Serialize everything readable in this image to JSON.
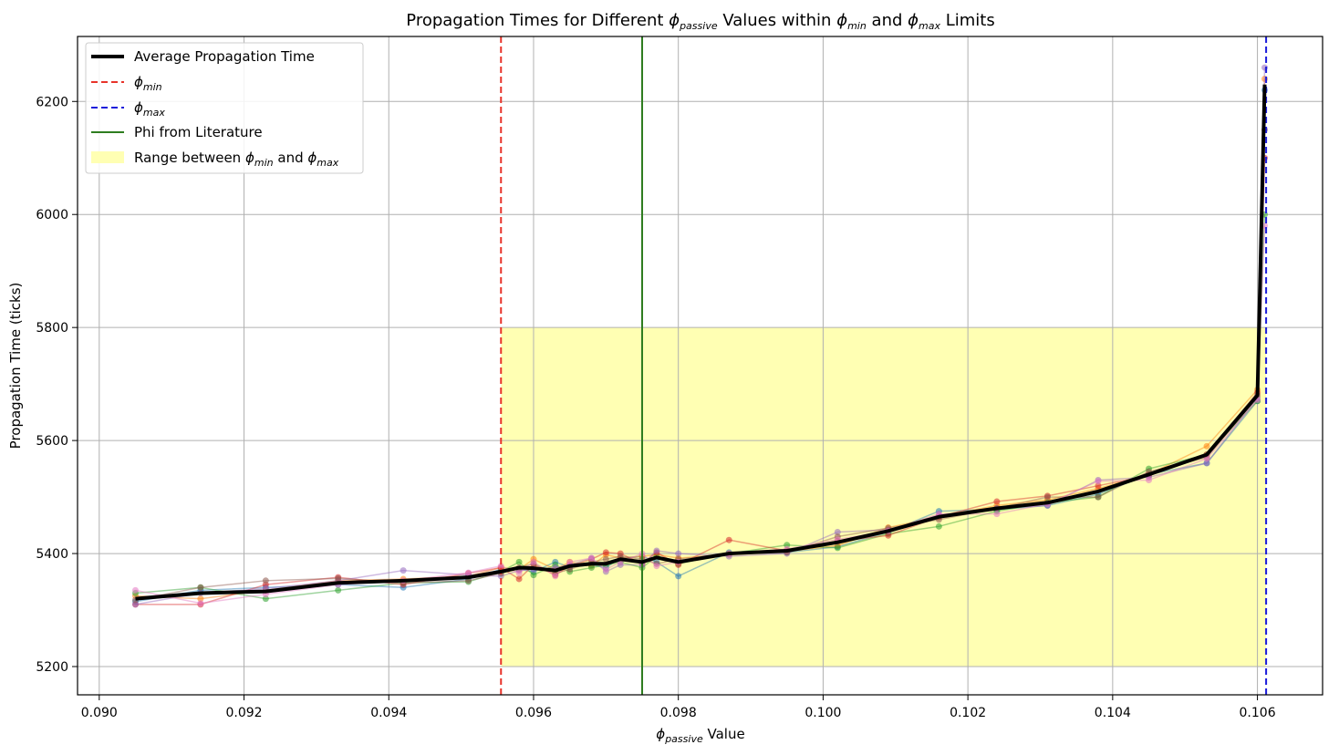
{
  "chart_data": {
    "type": "line",
    "title": {
      "prefix": "Propagation Times for Different ",
      "phi": "ϕ",
      "sub1": "passive",
      "mid1": " Values within ",
      "sub2": "min",
      "mid2": " and ",
      "sub3": "max",
      "suffix": " Limits"
    },
    "xlabel": {
      "phi": "ϕ",
      "sub": "passive",
      "suffix": " Value"
    },
    "ylabel": "Propagation Time (ticks)",
    "xlim": [
      0.0897,
      0.1069
    ],
    "ylim": [
      5150,
      6315
    ],
    "xticks": [
      "0.090",
      "0.092",
      "0.094",
      "0.096",
      "0.098",
      "0.100",
      "0.102",
      "0.104",
      "0.106"
    ],
    "xtick_values": [
      0.09,
      0.092,
      0.094,
      0.096,
      0.098,
      0.1,
      0.102,
      0.104,
      0.106
    ],
    "yticks": [
      "5200",
      "5400",
      "5600",
      "5800",
      "6000",
      "6200"
    ],
    "ytick_values": [
      5200,
      5400,
      5600,
      5800,
      6000,
      6200
    ],
    "grid": true,
    "legend_position": "top-left",
    "legend": [
      {
        "key": "avg",
        "label": "Average Propagation Time"
      },
      {
        "key": "phimin",
        "phi": "ϕ",
        "sub": "min"
      },
      {
        "key": "phimax",
        "phi": "ϕ",
        "sub": "max"
      },
      {
        "key": "lit",
        "label": "Phi from Literature"
      },
      {
        "key": "range",
        "prefix": "Range between ",
        "phi": "ϕ",
        "sub1": "min",
        "mid": " and ",
        "sub2": "max"
      }
    ],
    "phi_min": 0.09555,
    "phi_max": 0.10612,
    "phi_literature": 0.0975,
    "range_band": {
      "x": [
        0.09555,
        0.10612
      ],
      "y": [
        5200,
        5800
      ],
      "color": "#ffffb3"
    },
    "colors": {
      "average": "#000000",
      "phi_min": "#e8332a",
      "phi_max": "#1a1adb",
      "literature": "#2e7d1f",
      "grid": "#b0b0b0",
      "runs": [
        "#1f77b4",
        "#ff7f0e",
        "#2ca02c",
        "#d62728",
        "#9467bd",
        "#8c564b",
        "#e377c2",
        "#7f7f7f"
      ]
    },
    "x": [
      0.0905,
      0.0914,
      0.0923,
      0.0933,
      0.0942,
      0.0951,
      0.09555,
      0.0958,
      0.096,
      0.0963,
      0.0965,
      0.0968,
      0.097,
      0.0972,
      0.0975,
      0.0977,
      0.098,
      0.0987,
      0.0995,
      0.1002,
      0.1009,
      0.1016,
      0.1024,
      0.1031,
      0.1038,
      0.1045,
      0.1053,
      0.106,
      0.1061
    ],
    "series": [
      {
        "name": "Average Propagation Time",
        "values": [
          5320,
          5330,
          5333,
          5348,
          5352,
          5358,
          5368,
          5375,
          5374,
          5370,
          5378,
          5382,
          5382,
          5390,
          5385,
          5393,
          5385,
          5400,
          5405,
          5420,
          5440,
          5465,
          5480,
          5490,
          5510,
          5540,
          5575,
          5680,
          6230
        ]
      },
      {
        "values": [
          5315,
          5335,
          5340,
          5345,
          5340,
          5355,
          5372,
          5372,
          5368,
          5385,
          5376,
          5380,
          5375,
          5392,
          5395,
          5385,
          5360,
          5402,
          5402,
          5412,
          5438,
          5475,
          5478,
          5485,
          5505,
          5540,
          5560,
          5670,
          6220
        ]
      },
      {
        "values": [
          5325,
          5320,
          5335,
          5352,
          5355,
          5360,
          5375,
          5372,
          5390,
          5372,
          5385,
          5378,
          5398,
          5392,
          5395,
          5398,
          5392,
          5398,
          5404,
          5414,
          5446,
          5465,
          5485,
          5495,
          5515,
          5540,
          5590,
          5690,
          6240
        ]
      },
      {
        "values": [
          5330,
          5340,
          5320,
          5335,
          5348,
          5350,
          5368,
          5385,
          5362,
          5380,
          5368,
          5375,
          5380,
          5385,
          5375,
          5395,
          5382,
          5400,
          5415,
          5410,
          5435,
          5448,
          5475,
          5490,
          5500,
          5550,
          5575,
          5670,
          6000
        ]
      },
      {
        "values": [
          5310,
          5310,
          5345,
          5358,
          5345,
          5365,
          5375,
          5355,
          5380,
          5362,
          5378,
          5390,
          5402,
          5400,
          5382,
          5402,
          5380,
          5424,
          5405,
          5422,
          5432,
          5465,
          5492,
          5502,
          5520,
          5538,
          5575,
          5685,
          6100
        ]
      },
      {
        "values": [
          5310,
          5330,
          5338,
          5352,
          5370,
          5362,
          5360,
          5370,
          5372,
          5375,
          5380,
          5392,
          5368,
          5380,
          5380,
          5405,
          5400,
          5395,
          5400,
          5438,
          5442,
          5468,
          5480,
          5485,
          5530,
          5535,
          5560,
          5675,
          6260
        ]
      },
      {
        "values": [
          5318,
          5340,
          5352,
          5356,
          5348,
          5352,
          5365,
          5375,
          5382,
          5365,
          5372,
          5385,
          5390,
          5395,
          5390,
          5382,
          5390,
          5400,
          5402,
          5430,
          5445,
          5460,
          5480,
          5500,
          5500,
          5545,
          5570,
          5680,
          6150
        ]
      },
      {
        "values": [
          5335,
          5312,
          5328,
          5345,
          5352,
          5366,
          5378,
          5365,
          5385,
          5360,
          5385,
          5392,
          5372,
          5385,
          5400,
          5378,
          5385,
          5400,
          5408,
          5425,
          5440,
          5470,
          5470,
          5488,
          5528,
          5530,
          5568,
          5672,
          5980
        ]
      }
    ]
  }
}
